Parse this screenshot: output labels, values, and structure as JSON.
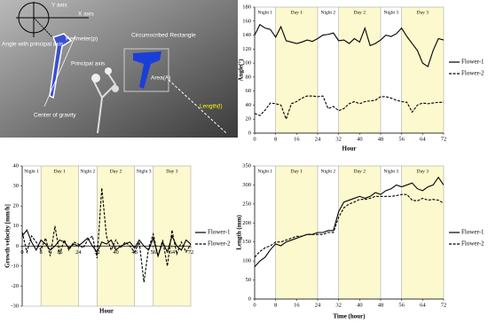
{
  "figure_image": {
    "labels": [
      "Y axis",
      "X axis",
      "Angle with principal axis",
      "Perimeter(p)",
      "Principal axis",
      "Center of gravity",
      "Circumscribed Rectangle",
      "Area(A)",
      "Length(l)"
    ]
  },
  "chart_data": [
    {
      "type": "line",
      "ylabel": "Angle(°)",
      "xlabel": "Hour",
      "x": [
        0,
        2,
        4,
        6,
        8,
        10,
        12,
        14,
        16,
        18,
        20,
        22,
        24,
        26,
        28,
        30,
        32,
        34,
        36,
        38,
        40,
        42,
        44,
        46,
        48,
        50,
        52,
        54,
        56,
        58,
        60,
        62,
        64,
        66,
        68,
        70,
        72
      ],
      "xlim": [
        0,
        72
      ],
      "xticks": [
        0,
        8,
        16,
        24,
        32,
        40,
        48,
        56,
        64,
        72
      ],
      "ylim": [
        0,
        180
      ],
      "yticks": [
        0,
        20,
        40,
        60,
        80,
        100,
        120,
        140,
        160,
        180
      ],
      "periods": [
        {
          "label": "Night 1",
          "start": 0,
          "end": 8,
          "color": "#ffffff"
        },
        {
          "label": "Day 1",
          "start": 8,
          "end": 24,
          "color": "#fdf9cf"
        },
        {
          "label": "Night 2",
          "start": 24,
          "end": 32,
          "color": "#ffffff"
        },
        {
          "label": "Day 2",
          "start": 32,
          "end": 48,
          "color": "#fdf9cf"
        },
        {
          "label": "Night 3",
          "start": 48,
          "end": 56,
          "color": "#ffffff"
        },
        {
          "label": "Day 3",
          "start": 56,
          "end": 72,
          "color": "#fdf9cf"
        }
      ],
      "series": [
        {
          "name": "Flower-1",
          "color": "#000000",
          "line_style": "solid",
          "values": [
            140,
            155,
            150,
            148,
            137,
            152,
            132,
            130,
            128,
            130,
            133,
            131,
            135,
            140,
            141,
            143,
            132,
            133,
            128,
            135,
            130,
            150,
            125,
            128,
            133,
            140,
            138,
            142,
            150,
            138,
            128,
            118,
            100,
            95,
            118,
            135,
            133
          ]
        },
        {
          "name": "Flower-2",
          "color": "#000000",
          "line_style": "dashed",
          "values": [
            28,
            25,
            33,
            43,
            42,
            40,
            20,
            42,
            45,
            50,
            53,
            53,
            52,
            53,
            35,
            38,
            32,
            35,
            42,
            45,
            42,
            45,
            46,
            47,
            52,
            52,
            50,
            47,
            45,
            44,
            30,
            40,
            43,
            42,
            43,
            44,
            44
          ]
        }
      ]
    },
    {
      "type": "line",
      "ylabel": "Growth velocity [mm/h]",
      "xlabel": "Hour",
      "xaxis_at_zero": true,
      "x": [
        0,
        2,
        4,
        6,
        8,
        10,
        12,
        14,
        16,
        18,
        20,
        22,
        24,
        26,
        28,
        30,
        32,
        34,
        36,
        38,
        40,
        42,
        44,
        46,
        48,
        50,
        52,
        54,
        56,
        58,
        60,
        62,
        64,
        66,
        68,
        70,
        72
      ],
      "xlim": [
        0,
        72
      ],
      "xticks": [
        0,
        8,
        16,
        24,
        32,
        40,
        48,
        56,
        64,
        72
      ],
      "ylim": [
        -30,
        40
      ],
      "yticks": [
        -30,
        -20,
        -10,
        0,
        10,
        20,
        30,
        40
      ],
      "periods": [
        {
          "label": "Night 1",
          "start": 0,
          "end": 8,
          "color": "#ffffff"
        },
        {
          "label": "Day 1",
          "start": 8,
          "end": 24,
          "color": "#fdf9cf"
        },
        {
          "label": "Night 2",
          "start": 24,
          "end": 32,
          "color": "#ffffff"
        },
        {
          "label": "Day 2",
          "start": 32,
          "end": 48,
          "color": "#fdf9cf"
        },
        {
          "label": "Night 3",
          "start": 48,
          "end": 56,
          "color": "#ffffff"
        },
        {
          "label": "Day 3",
          "start": 56,
          "end": 72,
          "color": "#fdf9cf"
        }
      ],
      "series": [
        {
          "name": "Flower-1",
          "color": "#000000",
          "line_style": "solid",
          "values": [
            5,
            8,
            2,
            -2,
            3,
            1,
            -2,
            0,
            3,
            2,
            -1,
            1,
            0,
            2,
            4,
            0,
            -3,
            2,
            1,
            3,
            -2,
            0,
            1,
            2,
            -1,
            3,
            0,
            -2,
            4,
            -5,
            2,
            -3,
            5,
            0,
            -2,
            3,
            1
          ]
        },
        {
          "name": "Flower-2",
          "color": "#000000",
          "line_style": "dashed",
          "values": [
            7,
            -3,
            5,
            2,
            -2,
            4,
            -5,
            10,
            -4,
            3,
            -2,
            2,
            1,
            -1,
            3,
            5,
            -6,
            29,
            5,
            -2,
            3,
            -1,
            2,
            0,
            -3,
            2,
            -18,
            -1,
            6,
            -5,
            3,
            -10,
            8,
            -4,
            2,
            -3,
            1
          ]
        }
      ]
    },
    {
      "type": "line",
      "ylabel": "Length (mm)",
      "xlabel": "Time (hour)",
      "x": [
        0,
        2,
        4,
        6,
        8,
        10,
        12,
        14,
        16,
        18,
        20,
        22,
        24,
        26,
        28,
        30,
        32,
        34,
        36,
        38,
        40,
        42,
        44,
        46,
        48,
        50,
        52,
        54,
        56,
        58,
        60,
        62,
        64,
        66,
        68,
        70,
        72
      ],
      "xlim": [
        0,
        72
      ],
      "xticks": [
        0,
        8,
        16,
        24,
        32,
        40,
        48,
        56,
        64,
        72
      ],
      "ylim": [
        0,
        350
      ],
      "yticks": [
        0,
        50,
        100,
        150,
        200,
        250,
        300,
        350
      ],
      "periods": [
        {
          "label": "Night 1",
          "start": 0,
          "end": 8,
          "color": "#ffffff"
        },
        {
          "label": "Day 1",
          "start": 8,
          "end": 24,
          "color": "#fdf9cf"
        },
        {
          "label": "Night 2",
          "start": 24,
          "end": 32,
          "color": "#ffffff"
        },
        {
          "label": "Day 2",
          "start": 32,
          "end": 48,
          "color": "#fdf9cf"
        },
        {
          "label": "Night 3",
          "start": 48,
          "end": 56,
          "color": "#ffffff"
        },
        {
          "label": "Day 3",
          "start": 56,
          "end": 72,
          "color": "#fdf9cf"
        }
      ],
      "series": [
        {
          "name": "Flower-1",
          "color": "#000000",
          "line_style": "solid",
          "values": [
            85,
            100,
            110,
            130,
            145,
            140,
            150,
            155,
            160,
            165,
            170,
            170,
            175,
            175,
            180,
            180,
            230,
            255,
            260,
            265,
            270,
            265,
            270,
            280,
            275,
            285,
            290,
            300,
            295,
            300,
            305,
            290,
            285,
            295,
            300,
            320,
            300
          ]
        },
        {
          "name": "Flower-2",
          "color": "#000000",
          "line_style": "dashed",
          "values": [
            110,
            125,
            135,
            140,
            150,
            150,
            155,
            160,
            165,
            165,
            170,
            170,
            170,
            170,
            175,
            175,
            215,
            240,
            250,
            255,
            262,
            262,
            265,
            270,
            270,
            270,
            270,
            272,
            275,
            275,
            260,
            258,
            265,
            260,
            262,
            260,
            252
          ]
        }
      ]
    }
  ]
}
